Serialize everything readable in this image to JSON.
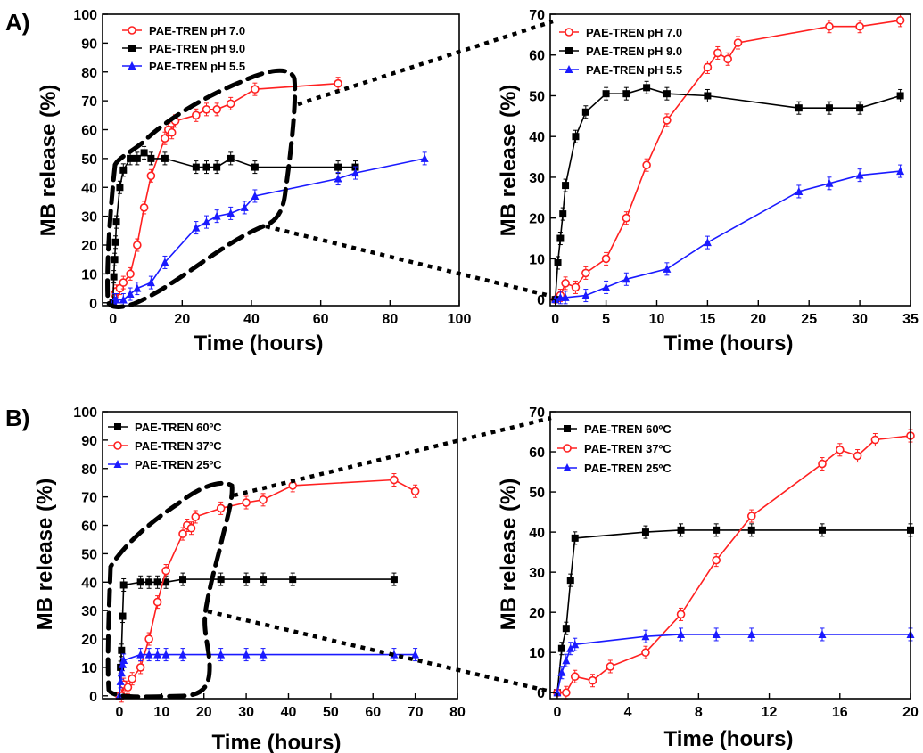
{
  "panel_labels": {
    "a": "A)",
    "b": "B)"
  },
  "chart_data": [
    {
      "type": "line",
      "xlabel": "Time (hours)",
      "ylabel": "MB release (%)",
      "xlim": [
        -3,
        100
      ],
      "ylim": [
        -1,
        100
      ],
      "xticks": [
        0,
        20,
        40,
        60,
        80,
        100
      ],
      "yticks": [
        0,
        10,
        20,
        30,
        40,
        50,
        60,
        70,
        80,
        90,
        100
      ],
      "legend_position": "top-left",
      "series": [
        {
          "name": "PAE-TREN pH 7.0",
          "color": "#ff2020",
          "marker": "circle",
          "x": [
            0,
            0.5,
            1,
            2,
            3,
            5,
            7,
            9,
            11,
            15,
            16,
            17,
            18,
            24,
            27,
            30,
            34,
            41,
            65
          ],
          "y": [
            0,
            3,
            4,
            5,
            7,
            10,
            20,
            33,
            44,
            57,
            60,
            59,
            63,
            65,
            67,
            67,
            69,
            74,
            76
          ]
        },
        {
          "name": "PAE-TREN pH 9.0",
          "color": "#000000",
          "marker": "square",
          "x": [
            0,
            0.25,
            0.5,
            0.75,
            1,
            2,
            3,
            5,
            7,
            9,
            11,
            15,
            24,
            27,
            30,
            34,
            41,
            65,
            70
          ],
          "y": [
            0,
            9,
            15,
            21,
            28,
            40,
            46,
            50,
            50,
            52,
            50,
            50,
            47,
            47,
            47,
            50,
            47,
            47,
            47
          ]
        },
        {
          "name": "PAE-TREN pH 5.5",
          "color": "#1a1aff",
          "marker": "triangle",
          "x": [
            0,
            0.5,
            1,
            3,
            5,
            7,
            11,
            15,
            24,
            27,
            30,
            34,
            38,
            41,
            65,
            70,
            90
          ],
          "y": [
            0,
            1,
            1,
            1,
            3,
            5,
            7,
            14,
            26,
            28,
            30,
            31,
            33,
            37,
            43,
            45,
            50
          ]
        }
      ]
    },
    {
      "type": "line",
      "xlabel": "Time (hours)",
      "ylabel": "MB release (%)",
      "xlim": [
        -0.5,
        35
      ],
      "ylim": [
        -1.5,
        70
      ],
      "xticks": [
        0,
        5,
        10,
        15,
        20,
        25,
        30,
        35
      ],
      "yticks": [
        0,
        10,
        20,
        30,
        40,
        50,
        60,
        70
      ],
      "legend_position": "top-left",
      "series": [
        {
          "name": "PAE-TREN pH 7.0",
          "color": "#ff2020",
          "marker": "circle",
          "x": [
            0,
            0.5,
            1,
            2,
            3,
            5,
            7,
            9,
            11,
            15,
            16,
            17,
            18,
            27,
            30,
            34
          ],
          "y": [
            0,
            1,
            4,
            3,
            6.5,
            10,
            20,
            33,
            44,
            57,
            60.5,
            59,
            63,
            67,
            67,
            68.5
          ]
        },
        {
          "name": "PAE-TREN pH 9.0",
          "color": "#000000",
          "marker": "square",
          "x": [
            0,
            0.25,
            0.5,
            0.75,
            1,
            2,
            3,
            5,
            7,
            9,
            11,
            15,
            24,
            27,
            30,
            34
          ],
          "y": [
            0,
            9,
            15,
            21,
            28,
            40,
            46,
            50.5,
            50.5,
            52,
            50.5,
            50,
            47,
            47,
            47,
            50
          ]
        },
        {
          "name": "PAE-TREN pH 5.5",
          "color": "#1a1aff",
          "marker": "triangle",
          "x": [
            0,
            0.5,
            1,
            3,
            5,
            7,
            11,
            15,
            24,
            27,
            30,
            34
          ],
          "y": [
            0,
            0.5,
            0.5,
            1,
            3,
            5,
            7.5,
            14,
            26.5,
            28.5,
            30.5,
            31.5
          ]
        }
      ]
    },
    {
      "type": "line",
      "xlabel": "Time (hours)",
      "ylabel": "MB release (%)",
      "xlim": [
        -4,
        80
      ],
      "ylim": [
        -1,
        100
      ],
      "xticks": [
        0,
        10,
        20,
        30,
        40,
        50,
        60,
        70,
        80
      ],
      "yticks": [
        0,
        10,
        20,
        30,
        40,
        50,
        60,
        70,
        80,
        90,
        100
      ],
      "legend_position": "top-left",
      "series": [
        {
          "name": "PAE-TREN 60ºC",
          "color": "#000000",
          "marker": "square",
          "x": [
            0,
            0.25,
            0.5,
            0.75,
            1,
            5,
            7,
            9,
            11,
            15,
            24,
            30,
            34,
            41,
            65
          ],
          "y": [
            0,
            10,
            16,
            28,
            39,
            40,
            40,
            40,
            40,
            41,
            41,
            41,
            41,
            41,
            41
          ]
        },
        {
          "name": "PAE-TREN 37ºC",
          "color": "#ff2020",
          "marker": "circle",
          "x": [
            0,
            0.5,
            1,
            2,
            3,
            5,
            7,
            9,
            11,
            15,
            16,
            17,
            18,
            24,
            30,
            34,
            41,
            65,
            70
          ],
          "y": [
            0,
            0,
            4,
            3,
            6,
            10,
            20,
            33,
            44,
            57,
            60,
            59,
            63,
            66,
            68,
            69,
            74,
            76,
            72
          ]
        },
        {
          "name": "PAE-TREN 25ºC",
          "color": "#1a1aff",
          "marker": "triangle",
          "x": [
            0,
            0.25,
            0.5,
            0.75,
            1,
            5,
            7,
            9,
            11,
            15,
            24,
            30,
            34,
            65,
            70
          ],
          "y": [
            0,
            5,
            8,
            11,
            12.5,
            14.5,
            14.5,
            14.5,
            14.5,
            14.5,
            14.5,
            14.5,
            14.5,
            14.5,
            14.5
          ]
        }
      ]
    },
    {
      "type": "line",
      "xlabel": "Time (hours)",
      "ylabel": "MB release (%)",
      "xlim": [
        -0.4,
        20
      ],
      "ylim": [
        -1.5,
        70
      ],
      "xticks": [
        0,
        4,
        8,
        12,
        16,
        20
      ],
      "yticks": [
        0,
        10,
        20,
        30,
        40,
        50,
        60,
        70
      ],
      "legend_position": "top-left",
      "series": [
        {
          "name": "PAE-TREN 60ºC",
          "color": "#000000",
          "marker": "square",
          "x": [
            0,
            0.25,
            0.5,
            0.75,
            1,
            5,
            7,
            9,
            11,
            15,
            20
          ],
          "y": [
            0,
            11,
            16,
            28,
            38.5,
            40,
            40.5,
            40.5,
            40.5,
            40.5,
            40.5
          ]
        },
        {
          "name": "PAE-TREN 37ºC",
          "color": "#ff2020",
          "marker": "circle",
          "x": [
            0,
            0.5,
            1,
            2,
            3,
            5,
            7,
            9,
            11,
            15,
            16,
            17,
            18,
            20
          ],
          "y": [
            0,
            0,
            4,
            3,
            6.5,
            10,
            19.5,
            33,
            44,
            57,
            60.5,
            59,
            63,
            64
          ]
        },
        {
          "name": "PAE-TREN 25ºC",
          "color": "#1a1aff",
          "marker": "triangle",
          "x": [
            0,
            0.25,
            0.5,
            0.75,
            1,
            5,
            7,
            9,
            11,
            15,
            20
          ],
          "y": [
            0,
            5,
            8,
            11,
            12,
            14,
            14.5,
            14.5,
            14.5,
            14.5,
            14.5
          ]
        }
      ]
    }
  ]
}
